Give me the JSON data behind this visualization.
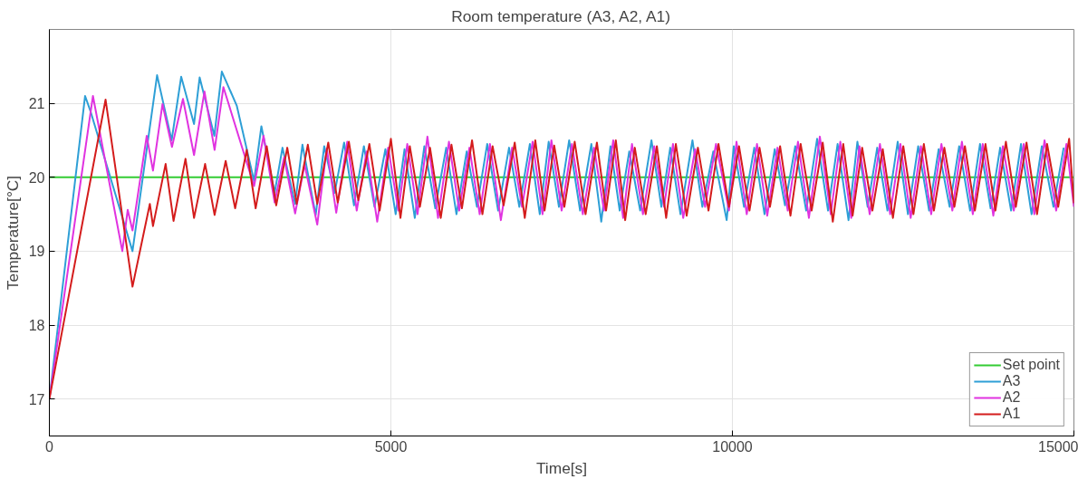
{
  "chart_data": {
    "type": "line",
    "title": "Room temperature (A3, A2, A1)",
    "xlabel": "Time[s]",
    "ylabel": "Temperature[°C]",
    "xlim": [
      0,
      15000
    ],
    "ylim": [
      16.5,
      22
    ],
    "xticks": [
      0,
      5000,
      10000,
      15000
    ],
    "yticks": [
      17,
      18,
      19,
      20,
      21
    ],
    "grid": true,
    "legend": "bottom right",
    "line_style": "solid",
    "series": [
      {
        "name": "Set point",
        "color": "#33cc33",
        "x": [
          0,
          15000
        ],
        "values": [
          20,
          20
        ]
      },
      {
        "name": "A3",
        "color": "#2e9fd6",
        "x": [
          0,
          523,
          600,
          1217,
          1577,
          1790,
          1930,
          2118,
          2200,
          2415,
          2525,
          2743,
          2997,
          3104,
          3298,
          3413,
          3598,
          3705,
          3899,
          4024,
          4177,
          4315,
          4460,
          4605,
          4760,
          4920,
          5070,
          5200,
          5350,
          5490,
          5650,
          5810,
          5960,
          6110,
          6260,
          6410,
          6570,
          6730,
          6880,
          7035,
          7180,
          7310,
          7460,
          7610,
          7770,
          7935,
          8080,
          8215,
          8350,
          8490,
          8650,
          8815,
          8960,
          9090,
          9240,
          9415,
          9560,
          9720,
          9916,
          10020,
          10170,
          10320,
          10470,
          10620,
          10770,
          10920,
          11080,
          11240,
          11400,
          11540,
          11700,
          11830,
          11980,
          12120,
          12270,
          12420,
          12570,
          12720,
          12880,
          13020,
          13180,
          13320,
          13480,
          13625,
          13780,
          13920,
          14080,
          14225,
          14380,
          14530,
          14700,
          14850
        ],
        "values": [
          17,
          21.1,
          20.9,
          19.0,
          21.38,
          20.5,
          21.36,
          20.72,
          21.35,
          20.56,
          21.43,
          20.97,
          19.95,
          20.69,
          19.79,
          20.4,
          19.64,
          20.44,
          19.49,
          20.42,
          19.79,
          20.47,
          19.62,
          20.42,
          19.6,
          20.38,
          19.5,
          20.38,
          19.45,
          20.42,
          19.58,
          20.4,
          19.5,
          20.35,
          19.6,
          20.45,
          19.55,
          20.4,
          19.6,
          20.45,
          19.5,
          20.48,
          19.6,
          20.5,
          19.55,
          20.45,
          19.4,
          20.42,
          19.55,
          20.35,
          19.55,
          20.5,
          19.6,
          20.4,
          19.5,
          20.5,
          19.6,
          20.35,
          19.42,
          20.42,
          19.6,
          20.4,
          19.5,
          20.38,
          19.62,
          20.42,
          19.55,
          20.52,
          19.55,
          20.45,
          19.42,
          20.48,
          19.6,
          20.4,
          19.55,
          20.48,
          19.5,
          20.42,
          19.55,
          20.38,
          19.6,
          20.42,
          19.55,
          20.45,
          19.58,
          20.4,
          19.55,
          20.45,
          19.5,
          20.42,
          19.6,
          20.4
        ]
      },
      {
        "name": "A2",
        "color": "#e033e0",
        "x": [
          0,
          638,
          1068,
          1147,
          1217,
          1425,
          1517,
          1656,
          1795,
          1956,
          2118,
          2271,
          2419,
          2548,
          2997,
          3136,
          3298,
          3437,
          3598,
          3737,
          3922,
          4061,
          4200,
          4361,
          4500,
          4645,
          4800,
          4960,
          5110,
          5240,
          5390,
          5535,
          5690,
          5850,
          6000,
          6150,
          6300,
          6450,
          6610,
          6775,
          6920,
          7075,
          7220,
          7350,
          7500,
          7650,
          7810,
          7975,
          8120,
          8255,
          8400,
          8530,
          8690,
          8855,
          9000,
          9130,
          9280,
          9455,
          9600,
          9760,
          9950,
          10060,
          10210,
          10360,
          10510,
          10660,
          10810,
          10960,
          11120,
          11280,
          11440,
          11580,
          11740,
          11860,
          12010,
          12160,
          12310,
          12460,
          12610,
          12760,
          12910,
          13060,
          13220,
          13360,
          13520,
          13665,
          13820,
          13960,
          14120,
          14265,
          14420,
          14570,
          14740,
          14890,
          15000
        ],
        "values": [
          17,
          21.1,
          19.0,
          19.56,
          19.28,
          20.56,
          20.09,
          20.99,
          20.41,
          21.06,
          20.3,
          21.16,
          20.37,
          21.22,
          19.88,
          20.56,
          19.66,
          20.27,
          19.51,
          20.17,
          19.36,
          20.39,
          19.52,
          20.48,
          19.55,
          20.35,
          19.4,
          20.4,
          19.55,
          20.45,
          19.5,
          20.55,
          19.45,
          20.48,
          19.55,
          20.4,
          19.5,
          20.45,
          19.42,
          20.4,
          19.6,
          20.48,
          19.5,
          20.5,
          19.55,
          20.45,
          19.5,
          20.4,
          19.55,
          20.5,
          19.45,
          20.45,
          19.5,
          20.42,
          19.6,
          20.45,
          19.45,
          20.38,
          19.6,
          20.45,
          19.55,
          20.48,
          19.5,
          20.45,
          19.48,
          20.4,
          19.55,
          20.48,
          19.45,
          20.55,
          19.5,
          20.48,
          19.45,
          20.42,
          19.5,
          20.45,
          19.5,
          20.45,
          19.45,
          20.42,
          19.5,
          20.45,
          19.55,
          20.48,
          19.5,
          20.45,
          19.48,
          20.42,
          19.55,
          20.45,
          19.5,
          20.5,
          19.55,
          20.45,
          19.6
        ]
      },
      {
        "name": "A1",
        "color": "#d41c1c",
        "x": [
          0,
          823,
          1217,
          1471,
          1517,
          1702,
          1818,
          1993,
          2118,
          2280,
          2419,
          2581,
          2720,
          2890,
          3020,
          3182,
          3321,
          3483,
          3621,
          3784,
          3922,
          4083,
          4222,
          4385,
          4523,
          4685,
          4835,
          5000,
          5140,
          5277,
          5425,
          5573,
          5730,
          5887,
          6040,
          6188,
          6340,
          6489,
          6650,
          6813,
          6960,
          7114,
          7250,
          7391,
          7540,
          7691,
          7850,
          8016,
          8150,
          8293,
          8430,
          8571,
          8730,
          8894,
          9030,
          9172,
          9330,
          9495,
          9650,
          9796,
          9950,
          10097,
          10250,
          10397,
          10550,
          10698,
          10850,
          10999,
          11160,
          11322,
          11470,
          11623,
          11760,
          11900,
          12050,
          12201,
          12350,
          12502,
          12650,
          12803,
          12950,
          13103,
          13250,
          13404,
          13550,
          13705,
          13850,
          14004,
          14150,
          14306,
          14460,
          14607,
          14770,
          14930,
          15000
        ],
        "values": [
          17,
          21.05,
          18.52,
          19.64,
          19.34,
          20.18,
          19.41,
          20.25,
          19.45,
          20.18,
          19.49,
          20.22,
          19.58,
          20.37,
          19.58,
          20.42,
          19.62,
          20.4,
          19.64,
          20.44,
          19.64,
          20.47,
          19.66,
          20.48,
          19.69,
          20.45,
          19.55,
          20.52,
          19.45,
          20.42,
          19.6,
          20.4,
          19.45,
          20.44,
          19.58,
          20.5,
          19.5,
          20.42,
          19.62,
          20.47,
          19.45,
          20.5,
          19.55,
          20.43,
          19.6,
          20.48,
          19.5,
          20.47,
          19.55,
          20.5,
          19.42,
          20.4,
          19.5,
          20.42,
          19.45,
          20.45,
          19.48,
          20.4,
          19.55,
          20.45,
          19.6,
          20.42,
          19.55,
          20.4,
          19.6,
          20.42,
          19.48,
          20.45,
          19.55,
          20.47,
          19.4,
          20.45,
          19.48,
          20.4,
          19.55,
          20.38,
          19.45,
          20.42,
          19.5,
          20.45,
          19.55,
          20.4,
          19.6,
          20.42,
          19.55,
          20.45,
          19.55,
          20.48,
          19.6,
          20.47,
          19.5,
          20.45,
          19.6,
          20.52,
          19.65
        ]
      }
    ]
  }
}
